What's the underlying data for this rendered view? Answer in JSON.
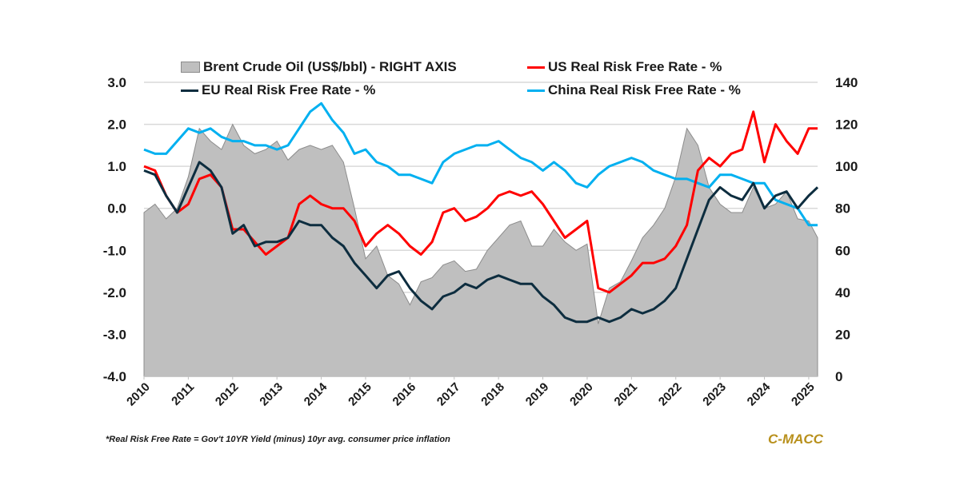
{
  "chart_data": {
    "type": "line",
    "title": "",
    "xlabel": "",
    "ylabel": "",
    "ylabel_right": "",
    "x_ticks": [
      "2010",
      "2011",
      "2012",
      "2013",
      "2014",
      "2015",
      "2016",
      "2017",
      "2018",
      "2019",
      "2020",
      "2021",
      "2022",
      "2023",
      "2024",
      "2025"
    ],
    "y_left": {
      "range": [
        -4.0,
        3.0
      ],
      "ticks": [
        "3.0",
        "2.0",
        "1.0",
        "0.0",
        "-1.0",
        "-2.0",
        "-3.0",
        "-4.0"
      ]
    },
    "y_right": {
      "range": [
        0,
        140
      ],
      "ticks": [
        "140",
        "120",
        "100",
        "80",
        "60",
        "40",
        "20",
        "0"
      ]
    },
    "grid": true,
    "legend_position": "top",
    "x": [
      2010.0,
      2010.25,
      2010.5,
      2010.75,
      2011.0,
      2011.25,
      2011.5,
      2011.75,
      2012.0,
      2012.25,
      2012.5,
      2012.75,
      2013.0,
      2013.25,
      2013.5,
      2013.75,
      2014.0,
      2014.25,
      2014.5,
      2014.75,
      2015.0,
      2015.25,
      2015.5,
      2015.75,
      2016.0,
      2016.25,
      2016.5,
      2016.75,
      2017.0,
      2017.25,
      2017.5,
      2017.75,
      2018.0,
      2018.25,
      2018.5,
      2018.75,
      2019.0,
      2019.25,
      2019.5,
      2019.75,
      2020.0,
      2020.25,
      2020.5,
      2020.75,
      2021.0,
      2021.25,
      2021.5,
      2021.75,
      2022.0,
      2022.25,
      2022.5,
      2022.75,
      2023.0,
      2023.25,
      2023.5,
      2023.75,
      2024.0,
      2024.25,
      2024.5,
      2024.75,
      2025.0,
      2025.2
    ],
    "series": [
      {
        "name": "Brent Crude Oil (US$/bbl) - RIGHT AXIS",
        "axis": "right",
        "type": "area",
        "color": "#bfbfbf",
        "values": [
          78,
          82,
          75,
          80,
          95,
          118,
          112,
          108,
          120,
          110,
          106,
          108,
          112,
          103,
          108,
          110,
          108,
          110,
          102,
          80,
          56,
          62,
          48,
          44,
          34,
          45,
          47,
          53,
          55,
          50,
          51,
          60,
          66,
          72,
          74,
          62,
          62,
          70,
          64,
          60,
          63,
          25,
          42,
          45,
          55,
          66,
          72,
          80,
          95,
          118,
          110,
          90,
          82,
          78,
          78,
          90,
          80,
          82,
          88,
          75,
          74,
          66
        ]
      },
      {
        "name": "US Real Risk Free Rate - %",
        "axis": "left",
        "type": "line",
        "color": "#ff0000",
        "values": [
          1.0,
          0.9,
          0.3,
          -0.1,
          0.1,
          0.7,
          0.8,
          0.5,
          -0.5,
          -0.5,
          -0.8,
          -1.1,
          -0.9,
          -0.7,
          0.1,
          0.3,
          0.1,
          0.0,
          0.0,
          -0.3,
          -0.9,
          -0.6,
          -0.4,
          -0.6,
          -0.9,
          -1.1,
          -0.8,
          -0.1,
          0.0,
          -0.3,
          -0.2,
          0.0,
          0.3,
          0.4,
          0.3,
          0.4,
          0.1,
          -0.3,
          -0.7,
          -0.5,
          -0.3,
          -1.9,
          -2.0,
          -1.8,
          -1.6,
          -1.3,
          -1.3,
          -1.2,
          -0.9,
          -0.4,
          0.9,
          1.2,
          1.0,
          1.3,
          1.4,
          2.3,
          1.1,
          2.0,
          1.6,
          1.3,
          1.9,
          1.9
        ]
      },
      {
        "name": "EU Real Risk Free Rate - %",
        "axis": "left",
        "type": "line",
        "color": "#0d2d3f",
        "values": [
          0.9,
          0.8,
          0.3,
          -0.1,
          0.5,
          1.1,
          0.9,
          0.5,
          -0.6,
          -0.4,
          -0.9,
          -0.8,
          -0.8,
          -0.7,
          -0.3,
          -0.4,
          -0.4,
          -0.7,
          -0.9,
          -1.3,
          -1.6,
          -1.9,
          -1.6,
          -1.5,
          -1.9,
          -2.2,
          -2.4,
          -2.1,
          -2.0,
          -1.8,
          -1.9,
          -1.7,
          -1.6,
          -1.7,
          -1.8,
          -1.8,
          -2.1,
          -2.3,
          -2.6,
          -2.7,
          -2.7,
          -2.6,
          -2.7,
          -2.6,
          -2.4,
          -2.5,
          -2.4,
          -2.2,
          -1.9,
          -1.2,
          -0.5,
          0.2,
          0.5,
          0.3,
          0.2,
          0.6,
          0.0,
          0.3,
          0.4,
          0.0,
          0.3,
          0.5
        ]
      },
      {
        "name": "China Real Risk Free Rate - %",
        "axis": "left",
        "type": "line",
        "color": "#00b0f0",
        "values": [
          1.4,
          1.3,
          1.3,
          1.6,
          1.9,
          1.8,
          1.9,
          1.7,
          1.6,
          1.6,
          1.5,
          1.5,
          1.4,
          1.5,
          1.9,
          2.3,
          2.5,
          2.1,
          1.8,
          1.3,
          1.4,
          1.1,
          1.0,
          0.8,
          0.8,
          0.7,
          0.6,
          1.1,
          1.3,
          1.4,
          1.5,
          1.5,
          1.6,
          1.4,
          1.2,
          1.1,
          0.9,
          1.1,
          0.9,
          0.6,
          0.5,
          0.8,
          1.0,
          1.1,
          1.2,
          1.1,
          0.9,
          0.8,
          0.7,
          0.7,
          0.6,
          0.5,
          0.8,
          0.8,
          0.7,
          0.6,
          0.6,
          0.2,
          0.1,
          0.0,
          -0.4,
          -0.4
        ]
      }
    ],
    "footnote": "*Real Risk Free Rate = Gov't 10YR Yield (minus) 10yr avg. consumer price inflation",
    "source": "C-MACC"
  }
}
